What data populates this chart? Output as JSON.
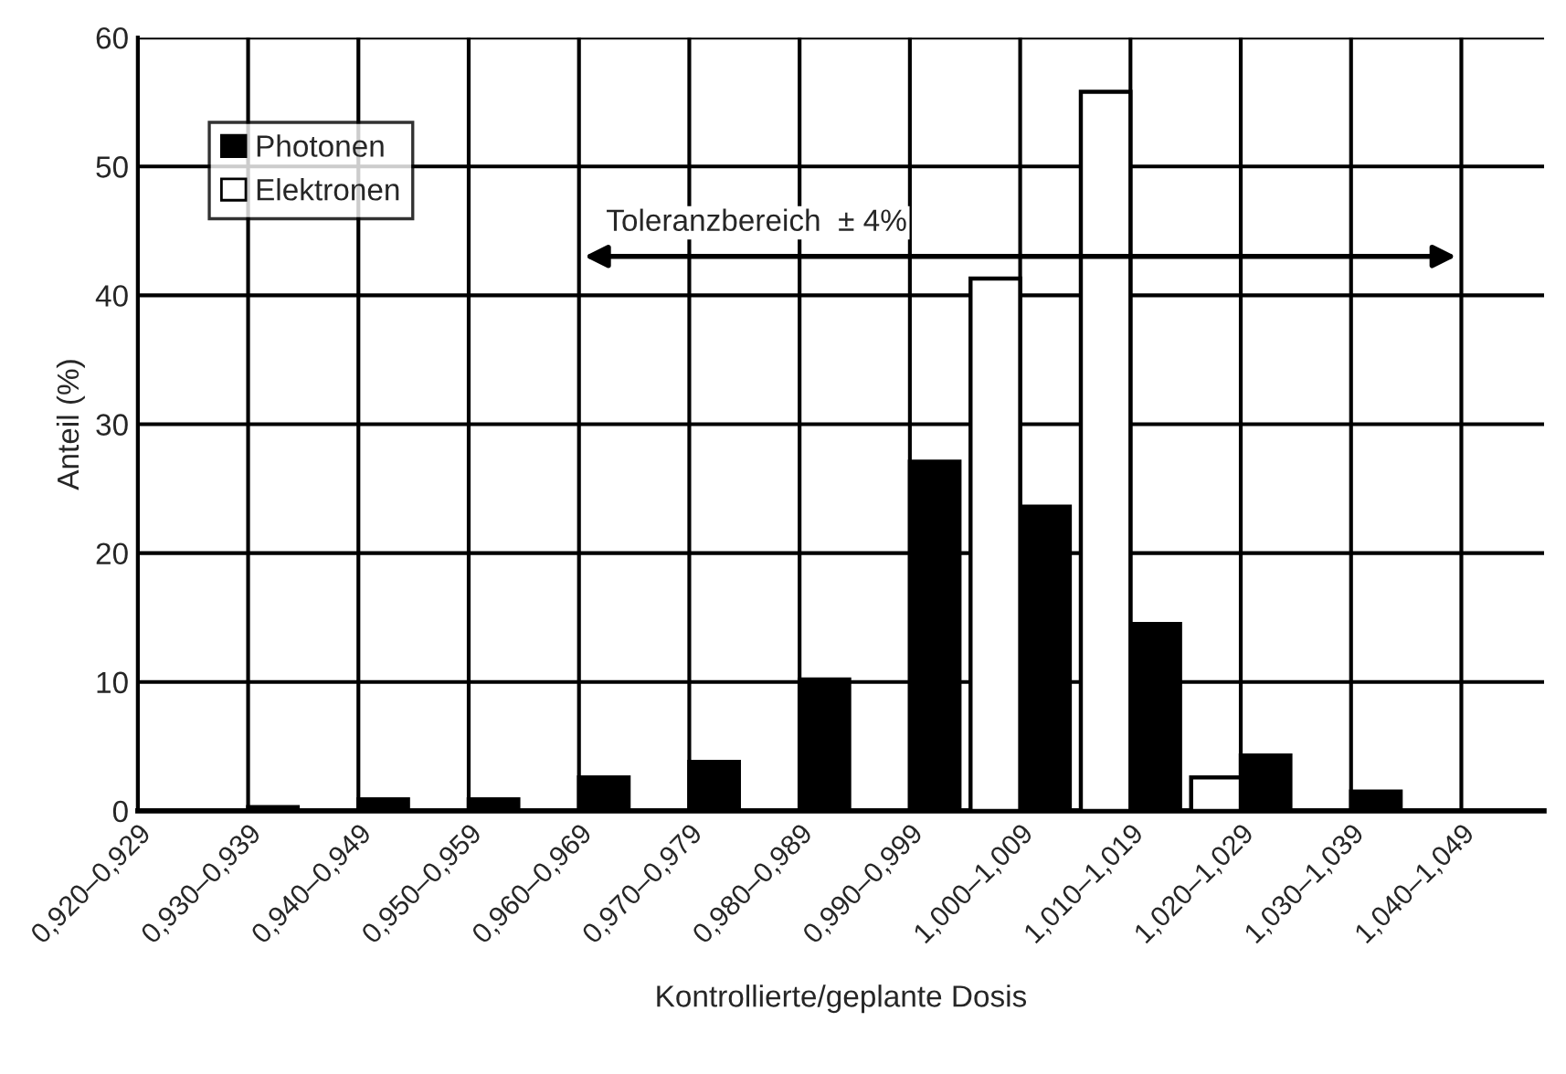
{
  "chart_data": {
    "type": "bar",
    "xlabel": "Kontrollierte/geplante Dosis",
    "ylabel": "Anteil (%)",
    "categories": [
      "0,920–0,929",
      "0,930–0,939",
      "0,940–0,949",
      "0,950–0,959",
      "0,960–0,969",
      "0,970–0,979",
      "0,980–0,989",
      "0,990–0,999",
      "1,000–1,009",
      "1,010–1,019",
      "1,020–1,029",
      "1,030–1,039",
      "1,040–1,049"
    ],
    "series": [
      {
        "name": "Photonen",
        "color": "#000000",
        "values": [
          0,
          0.3,
          0.9,
          0.9,
          2.6,
          3.8,
          10.2,
          27.1,
          23.6,
          14.5,
          4.3,
          1.5,
          0
        ]
      },
      {
        "name": "Elektronen",
        "color": "#ffffff",
        "values": [
          null,
          null,
          null,
          null,
          null,
          null,
          null,
          null,
          41.3,
          55.8,
          2.6,
          null,
          null
        ]
      }
    ],
    "ylim": [
      0,
      60
    ],
    "yticks": [
      0,
      10,
      20,
      30,
      40,
      50,
      60
    ],
    "grid": true,
    "legend": "top left",
    "annotations": [
      "Toleranzbereich  ± 4%"
    ]
  }
}
